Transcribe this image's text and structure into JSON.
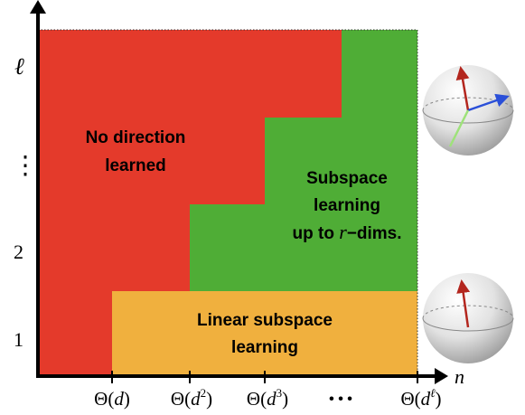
{
  "regions": {
    "no_direction": {
      "line1": "No direction",
      "line2": "learned",
      "color": "#e43a2b"
    },
    "subspace": {
      "line1": "Subspace",
      "line2": "learning",
      "line3_prefix": "up to ",
      "line3_var": "r",
      "line3_suffix": "−dims.",
      "color": "#4fad36"
    },
    "linear": {
      "line1": "Linear subspace",
      "line2": "learning",
      "color": "#f0b03e"
    }
  },
  "y_axis": {
    "var": "ℓ",
    "ticks": [
      "1",
      "2",
      "⋮"
    ]
  },
  "x_axis": {
    "var": "n",
    "ticks": [
      "Θ(d)",
      "Θ(d²)",
      "Θ(d³)",
      "• • •",
      "Θ(d^ℓ)"
    ]
  },
  "tick_parts": {
    "theta": "Θ(",
    "d": "d",
    "close": ")",
    "sup2": "2",
    "sup3": "3",
    "supl": "ℓ",
    "dots": "• • •"
  },
  "colors": {
    "axis": "#000000",
    "arrow_red": "#b3261e",
    "arrow_blue": "#2a4fd8",
    "arrow_green": "#9ee27a"
  }
}
